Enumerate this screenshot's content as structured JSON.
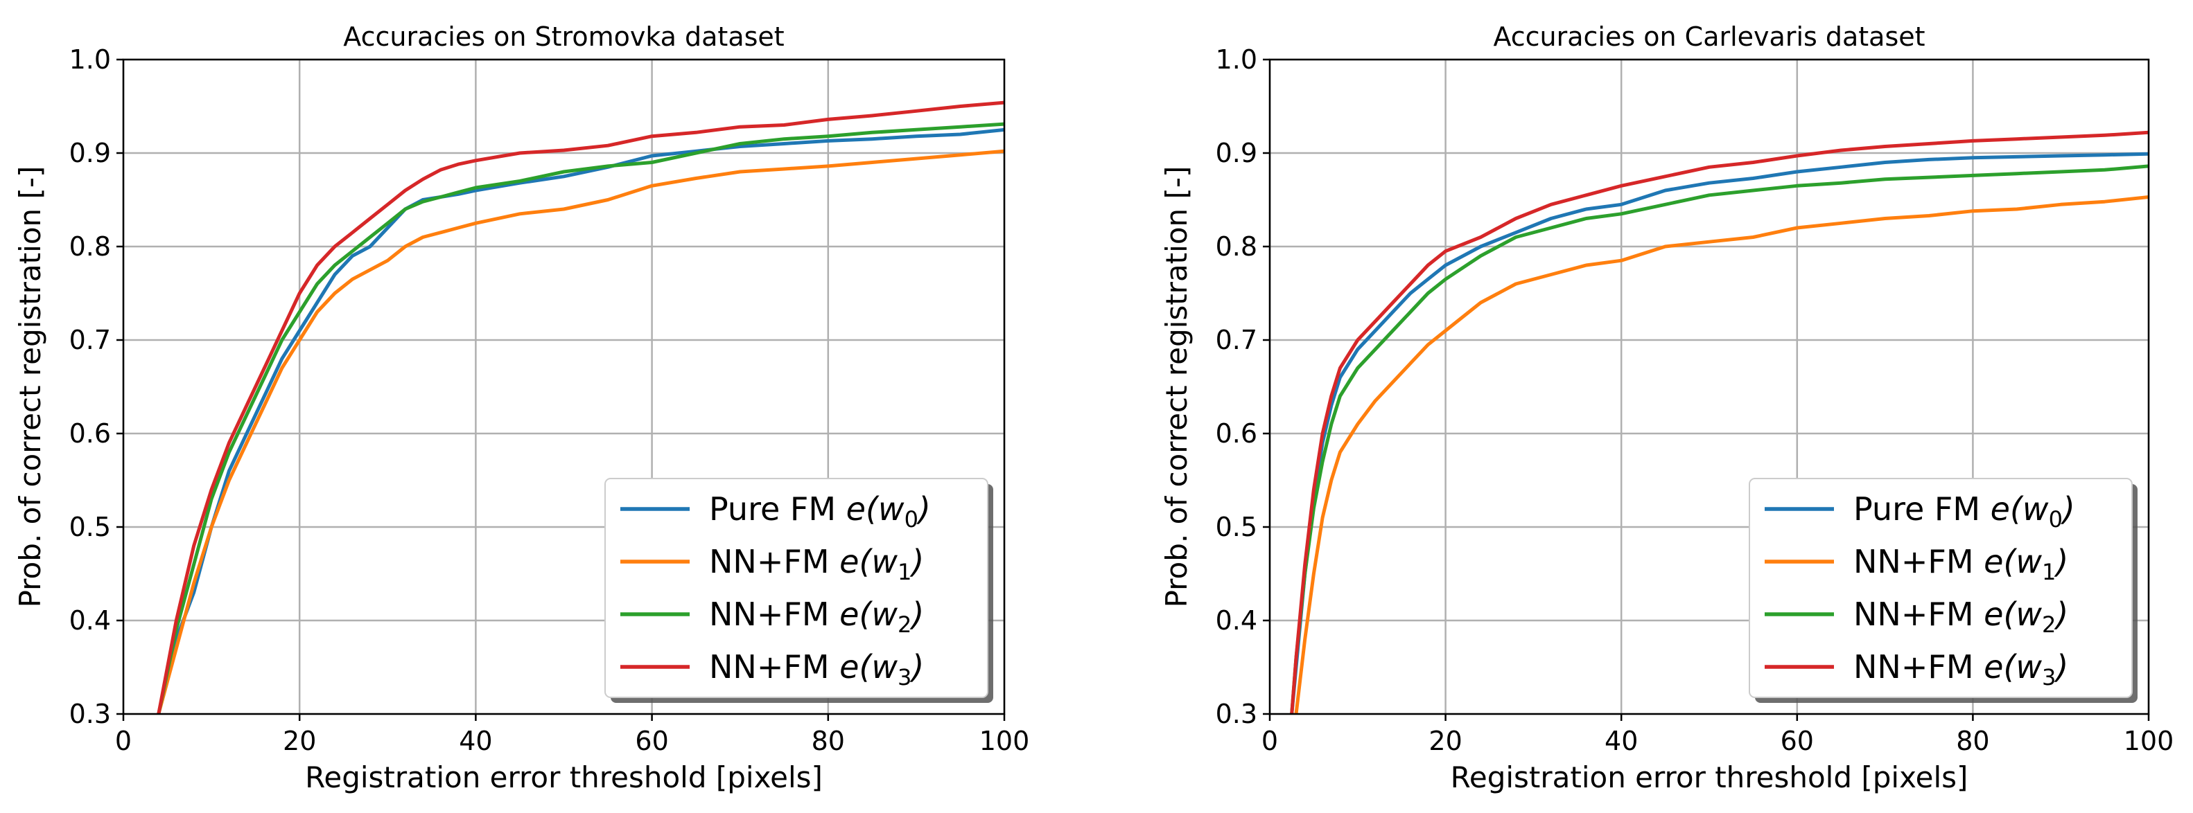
{
  "colors": {
    "pure_fm": "#1f77b4",
    "nn_w1": "#ff7f0e",
    "nn_w2": "#2ca02c",
    "nn_w3": "#d62728",
    "grid": "#b0b0b0"
  },
  "chart_data": [
    {
      "type": "line",
      "title": "Accuracies on Stromovka dataset",
      "xlabel": "Registration error threshold [pixels]",
      "ylabel": "Prob. of correct registration [-]",
      "xlim": [
        0,
        100
      ],
      "ylim": [
        0.3,
        1.0
      ],
      "xticks": [
        0,
        20,
        40,
        60,
        80,
        100
      ],
      "yticks": [
        0.3,
        0.4,
        0.5,
        0.6,
        0.7,
        0.8,
        0.9,
        1.0
      ],
      "grid": true,
      "legend_position": "lower-right",
      "series": [
        {
          "name": "Pure FM",
          "legend_label": "Pure FM e(w0)",
          "weight_subscript": "0",
          "color": "#1f77b4",
          "points": [
            [
              4,
              0.3
            ],
            [
              6,
              0.38
            ],
            [
              8,
              0.43
            ],
            [
              10,
              0.5
            ],
            [
              12,
              0.56
            ],
            [
              14,
              0.6
            ],
            [
              16,
              0.64
            ],
            [
              18,
              0.68
            ],
            [
              20,
              0.71
            ],
            [
              22,
              0.74
            ],
            [
              24,
              0.77
            ],
            [
              26,
              0.79
            ],
            [
              28,
              0.8
            ],
            [
              30,
              0.82
            ],
            [
              32,
              0.84
            ],
            [
              34,
              0.85
            ],
            [
              36,
              0.853
            ],
            [
              38,
              0.856
            ],
            [
              40,
              0.86
            ],
            [
              45,
              0.868
            ],
            [
              50,
              0.875
            ],
            [
              55,
              0.885
            ],
            [
              60,
              0.897
            ],
            [
              65,
              0.902
            ],
            [
              70,
              0.907
            ],
            [
              75,
              0.91
            ],
            [
              80,
              0.913
            ],
            [
              85,
              0.915
            ],
            [
              90,
              0.918
            ],
            [
              95,
              0.92
            ],
            [
              100,
              0.925
            ]
          ]
        },
        {
          "name": "NN+FM",
          "legend_label": "NN+FM e(w1)",
          "weight_subscript": "1",
          "color": "#ff7f0e",
          "points": [
            [
              4,
              0.3
            ],
            [
              6,
              0.37
            ],
            [
              8,
              0.44
            ],
            [
              10,
              0.5
            ],
            [
              12,
              0.55
            ],
            [
              14,
              0.59
            ],
            [
              16,
              0.63
            ],
            [
              18,
              0.67
            ],
            [
              20,
              0.7
            ],
            [
              22,
              0.73
            ],
            [
              24,
              0.75
            ],
            [
              26,
              0.765
            ],
            [
              28,
              0.775
            ],
            [
              30,
              0.785
            ],
            [
              32,
              0.8
            ],
            [
              34,
              0.81
            ],
            [
              36,
              0.815
            ],
            [
              38,
              0.82
            ],
            [
              40,
              0.825
            ],
            [
              45,
              0.835
            ],
            [
              50,
              0.84
            ],
            [
              55,
              0.85
            ],
            [
              60,
              0.865
            ],
            [
              65,
              0.873
            ],
            [
              70,
              0.88
            ],
            [
              75,
              0.883
            ],
            [
              80,
              0.886
            ],
            [
              85,
              0.89
            ],
            [
              90,
              0.894
            ],
            [
              95,
              0.898
            ],
            [
              100,
              0.902
            ]
          ]
        },
        {
          "name": "NN+FM",
          "legend_label": "NN+FM e(w2)",
          "weight_subscript": "2",
          "color": "#2ca02c",
          "points": [
            [
              4,
              0.3
            ],
            [
              6,
              0.39
            ],
            [
              8,
              0.46
            ],
            [
              10,
              0.53
            ],
            [
              12,
              0.58
            ],
            [
              14,
              0.62
            ],
            [
              16,
              0.66
            ],
            [
              18,
              0.7
            ],
            [
              20,
              0.73
            ],
            [
              22,
              0.76
            ],
            [
              24,
              0.78
            ],
            [
              26,
              0.795
            ],
            [
              28,
              0.81
            ],
            [
              30,
              0.825
            ],
            [
              32,
              0.84
            ],
            [
              34,
              0.848
            ],
            [
              36,
              0.853
            ],
            [
              38,
              0.858
            ],
            [
              40,
              0.863
            ],
            [
              45,
              0.87
            ],
            [
              50,
              0.88
            ],
            [
              55,
              0.886
            ],
            [
              60,
              0.89
            ],
            [
              65,
              0.9
            ],
            [
              70,
              0.91
            ],
            [
              75,
              0.915
            ],
            [
              80,
              0.918
            ],
            [
              85,
              0.922
            ],
            [
              90,
              0.925
            ],
            [
              95,
              0.928
            ],
            [
              100,
              0.931
            ]
          ]
        },
        {
          "name": "NN+FM",
          "legend_label": "NN+FM e(w3)",
          "weight_subscript": "3",
          "color": "#d62728",
          "points": [
            [
              4,
              0.3
            ],
            [
              6,
              0.4
            ],
            [
              8,
              0.48
            ],
            [
              10,
              0.54
            ],
            [
              12,
              0.59
            ],
            [
              14,
              0.63
            ],
            [
              16,
              0.67
            ],
            [
              18,
              0.71
            ],
            [
              20,
              0.75
            ],
            [
              22,
              0.78
            ],
            [
              24,
              0.8
            ],
            [
              26,
              0.815
            ],
            [
              28,
              0.83
            ],
            [
              30,
              0.845
            ],
            [
              32,
              0.86
            ],
            [
              34,
              0.872
            ],
            [
              36,
              0.882
            ],
            [
              38,
              0.888
            ],
            [
              40,
              0.892
            ],
            [
              45,
              0.9
            ],
            [
              50,
              0.903
            ],
            [
              55,
              0.908
            ],
            [
              60,
              0.918
            ],
            [
              65,
              0.922
            ],
            [
              70,
              0.928
            ],
            [
              75,
              0.93
            ],
            [
              80,
              0.936
            ],
            [
              85,
              0.94
            ],
            [
              90,
              0.945
            ],
            [
              95,
              0.95
            ],
            [
              100,
              0.954
            ]
          ]
        }
      ]
    },
    {
      "type": "line",
      "title": "Accuracies on Carlevaris dataset",
      "xlabel": "Registration error threshold [pixels]",
      "ylabel": "Prob. of correct registration [-]",
      "xlim": [
        0,
        100
      ],
      "ylim": [
        0.3,
        1.0
      ],
      "xticks": [
        0,
        20,
        40,
        60,
        80,
        100
      ],
      "yticks": [
        0.3,
        0.4,
        0.5,
        0.6,
        0.7,
        0.8,
        0.9,
        1.0
      ],
      "grid": true,
      "legend_position": "lower-right",
      "series": [
        {
          "name": "Pure FM",
          "legend_label": "Pure FM e(w0)",
          "weight_subscript": "0",
          "color": "#1f77b4",
          "points": [
            [
              2.5,
              0.3
            ],
            [
              3,
              0.35
            ],
            [
              4,
              0.45
            ],
            [
              5,
              0.53
            ],
            [
              6,
              0.59
            ],
            [
              7,
              0.63
            ],
            [
              8,
              0.66
            ],
            [
              10,
              0.69
            ],
            [
              12,
              0.71
            ],
            [
              14,
              0.73
            ],
            [
              16,
              0.75
            ],
            [
              18,
              0.765
            ],
            [
              20,
              0.78
            ],
            [
              24,
              0.8
            ],
            [
              28,
              0.815
            ],
            [
              32,
              0.83
            ],
            [
              36,
              0.84
            ],
            [
              40,
              0.845
            ],
            [
              45,
              0.86
            ],
            [
              50,
              0.868
            ],
            [
              55,
              0.873
            ],
            [
              60,
              0.88
            ],
            [
              65,
              0.885
            ],
            [
              70,
              0.89
            ],
            [
              75,
              0.893
            ],
            [
              80,
              0.895
            ],
            [
              85,
              0.896
            ],
            [
              90,
              0.897
            ],
            [
              95,
              0.898
            ],
            [
              100,
              0.899
            ]
          ]
        },
        {
          "name": "NN+FM",
          "legend_label": "NN+FM e(w1)",
          "weight_subscript": "1",
          "color": "#ff7f0e",
          "points": [
            [
              3,
              0.3
            ],
            [
              4,
              0.38
            ],
            [
              5,
              0.45
            ],
            [
              6,
              0.51
            ],
            [
              7,
              0.55
            ],
            [
              8,
              0.58
            ],
            [
              10,
              0.61
            ],
            [
              12,
              0.635
            ],
            [
              14,
              0.655
            ],
            [
              16,
              0.675
            ],
            [
              18,
              0.695
            ],
            [
              20,
              0.71
            ],
            [
              24,
              0.74
            ],
            [
              28,
              0.76
            ],
            [
              32,
              0.77
            ],
            [
              36,
              0.78
            ],
            [
              40,
              0.785
            ],
            [
              45,
              0.8
            ],
            [
              50,
              0.805
            ],
            [
              55,
              0.81
            ],
            [
              60,
              0.82
            ],
            [
              65,
              0.825
            ],
            [
              70,
              0.83
            ],
            [
              75,
              0.833
            ],
            [
              80,
              0.838
            ],
            [
              85,
              0.84
            ],
            [
              90,
              0.845
            ],
            [
              95,
              0.848
            ],
            [
              100,
              0.853
            ]
          ]
        },
        {
          "name": "NN+FM",
          "legend_label": "NN+FM e(w2)",
          "weight_subscript": "2",
          "color": "#2ca02c",
          "points": [
            [
              2.5,
              0.3
            ],
            [
              3,
              0.36
            ],
            [
              4,
              0.45
            ],
            [
              5,
              0.52
            ],
            [
              6,
              0.57
            ],
            [
              7,
              0.61
            ],
            [
              8,
              0.64
            ],
            [
              10,
              0.67
            ],
            [
              12,
              0.69
            ],
            [
              14,
              0.71
            ],
            [
              16,
              0.73
            ],
            [
              18,
              0.75
            ],
            [
              20,
              0.765
            ],
            [
              24,
              0.79
            ],
            [
              28,
              0.81
            ],
            [
              32,
              0.82
            ],
            [
              36,
              0.83
            ],
            [
              40,
              0.835
            ],
            [
              45,
              0.845
            ],
            [
              50,
              0.855
            ],
            [
              55,
              0.86
            ],
            [
              60,
              0.865
            ],
            [
              65,
              0.868
            ],
            [
              70,
              0.872
            ],
            [
              75,
              0.874
            ],
            [
              80,
              0.876
            ],
            [
              85,
              0.878
            ],
            [
              90,
              0.88
            ],
            [
              95,
              0.882
            ],
            [
              100,
              0.886
            ]
          ]
        },
        {
          "name": "NN+FM",
          "legend_label": "NN+FM e(w3)",
          "weight_subscript": "3",
          "color": "#d62728",
          "points": [
            [
              2.5,
              0.3
            ],
            [
              3,
              0.36
            ],
            [
              4,
              0.46
            ],
            [
              5,
              0.54
            ],
            [
              6,
              0.6
            ],
            [
              7,
              0.64
            ],
            [
              8,
              0.67
            ],
            [
              10,
              0.7
            ],
            [
              12,
              0.72
            ],
            [
              14,
              0.74
            ],
            [
              16,
              0.76
            ],
            [
              18,
              0.78
            ],
            [
              20,
              0.795
            ],
            [
              24,
              0.81
            ],
            [
              28,
              0.83
            ],
            [
              32,
              0.845
            ],
            [
              36,
              0.855
            ],
            [
              40,
              0.865
            ],
            [
              45,
              0.875
            ],
            [
              50,
              0.885
            ],
            [
              55,
              0.89
            ],
            [
              60,
              0.897
            ],
            [
              65,
              0.903
            ],
            [
              70,
              0.907
            ],
            [
              75,
              0.91
            ],
            [
              80,
              0.913
            ],
            [
              85,
              0.915
            ],
            [
              90,
              0.917
            ],
            [
              95,
              0.919
            ],
            [
              100,
              0.922
            ]
          ]
        }
      ]
    }
  ]
}
